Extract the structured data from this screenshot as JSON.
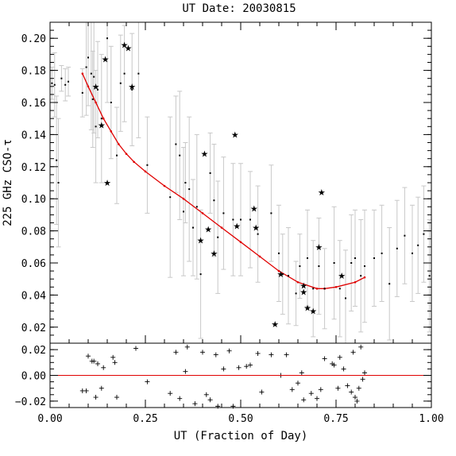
{
  "chart_data": {
    "type": "scatter",
    "title": "UT Date: 20030815",
    "xlabel": "UT (Fraction of Day)",
    "ylabel": "225 GHz CSO-τ",
    "xlim": [
      0,
      1
    ],
    "ylim": [
      0.01,
      0.21
    ],
    "resid_ylim": [
      -0.025,
      0.025
    ],
    "x_ticks": [
      "0.00",
      "0.25",
      "0.50",
      "0.75",
      "1.00"
    ],
    "y_ticks": [
      "0.02",
      "0.04",
      "0.06",
      "0.08",
      "0.10",
      "0.12",
      "0.14",
      "0.16",
      "0.18",
      "0.20"
    ],
    "resid_ticks": [
      "−0.02",
      "0.00",
      "0.02"
    ],
    "colors": {
      "fit": "#e00000",
      "errorbar": "#c8c8c8",
      "points": "#000000",
      "axes": "#000000"
    },
    "measurements": [
      {
        "x": 0.005,
        "y": 0.172,
        "err": 0.01
      },
      {
        "x": 0.012,
        "y": 0.171,
        "err": 0.02
      },
      {
        "x": 0.017,
        "y": 0.124,
        "err": 0.04
      },
      {
        "x": 0.022,
        "y": 0.11,
        "err": 0.04
      },
      {
        "x": 0.03,
        "y": 0.175,
        "err": 0.008
      },
      {
        "x": 0.04,
        "y": 0.171,
        "err": 0.01
      },
      {
        "x": 0.048,
        "y": 0.173,
        "err": 0.009
      },
      {
        "x": 0.085,
        "y": 0.166,
        "err": 0.015
      },
      {
        "x": 0.095,
        "y": 0.182,
        "err": 0.03
      },
      {
        "x": 0.1,
        "y": 0.188,
        "err": 0.03
      },
      {
        "x": 0.108,
        "y": 0.178,
        "err": 0.035
      },
      {
        "x": 0.112,
        "y": 0.162,
        "err": 0.03
      },
      {
        "x": 0.115,
        "y": 0.176,
        "err": 0.035
      },
      {
        "x": 0.12,
        "y": 0.145,
        "err": 0.035
      },
      {
        "x": 0.125,
        "y": 0.168,
        "err": 0.03
      },
      {
        "x": 0.135,
        "y": 0.15,
        "err": 0.04
      },
      {
        "x": 0.15,
        "y": 0.2,
        "err": 0.04
      },
      {
        "x": 0.16,
        "y": 0.16,
        "err": 0.035
      },
      {
        "x": 0.175,
        "y": 0.127,
        "err": 0.03
      },
      {
        "x": 0.185,
        "y": 0.172,
        "err": 0.03
      },
      {
        "x": 0.195,
        "y": 0.178,
        "err": 0.03
      },
      {
        "x": 0.215,
        "y": 0.168,
        "err": 0.035
      },
      {
        "x": 0.232,
        "y": 0.178,
        "err": 0.04
      },
      {
        "x": 0.255,
        "y": 0.121,
        "err": 0.03
      },
      {
        "x": 0.315,
        "y": 0.101,
        "err": 0.05
      },
      {
        "x": 0.33,
        "y": 0.134,
        "err": 0.03
      },
      {
        "x": 0.34,
        "y": 0.127,
        "err": 0.04
      },
      {
        "x": 0.35,
        "y": 0.092,
        "err": 0.04
      },
      {
        "x": 0.355,
        "y": 0.11,
        "err": 0.025
      },
      {
        "x": 0.365,
        "y": 0.106,
        "err": 0.045
      },
      {
        "x": 0.375,
        "y": 0.082,
        "err": 0.03
      },
      {
        "x": 0.385,
        "y": 0.095,
        "err": 0.045
      },
      {
        "x": 0.395,
        "y": 0.053,
        "err": 0.04
      },
      {
        "x": 0.42,
        "y": 0.116,
        "err": 0.025
      },
      {
        "x": 0.43,
        "y": 0.099,
        "err": 0.035
      },
      {
        "x": 0.44,
        "y": 0.076,
        "err": 0.035
      },
      {
        "x": 0.455,
        "y": 0.091,
        "err": 0.035
      },
      {
        "x": 0.48,
        "y": 0.087,
        "err": 0.035
      },
      {
        "x": 0.5,
        "y": 0.087,
        "err": 0.035
      },
      {
        "x": 0.525,
        "y": 0.087,
        "err": 0.03
      },
      {
        "x": 0.545,
        "y": 0.078,
        "err": 0.03
      },
      {
        "x": 0.58,
        "y": 0.091,
        "err": 0.03
      },
      {
        "x": 0.6,
        "y": 0.066,
        "err": 0.03
      },
      {
        "x": 0.61,
        "y": 0.053,
        "err": 0.025
      },
      {
        "x": 0.625,
        "y": 0.052,
        "err": 0.03
      },
      {
        "x": 0.645,
        "y": 0.041,
        "err": 0.02
      },
      {
        "x": 0.655,
        "y": 0.058,
        "err": 0.02
      },
      {
        "x": 0.675,
        "y": 0.063,
        "err": 0.03
      },
      {
        "x": 0.69,
        "y": 0.044,
        "err": 0.03
      },
      {
        "x": 0.705,
        "y": 0.058,
        "err": 0.03
      },
      {
        "x": 0.72,
        "y": 0.044,
        "err": 0.025
      },
      {
        "x": 0.745,
        "y": 0.06,
        "err": 0.035
      },
      {
        "x": 0.76,
        "y": 0.044,
        "err": 0.03
      },
      {
        "x": 0.775,
        "y": 0.038,
        "err": 0.03
      },
      {
        "x": 0.79,
        "y": 0.06,
        "err": 0.03
      },
      {
        "x": 0.8,
        "y": 0.063,
        "err": 0.03
      },
      {
        "x": 0.815,
        "y": 0.052,
        "err": 0.035
      },
      {
        "x": 0.825,
        "y": 0.058,
        "err": 0.035
      },
      {
        "x": 0.85,
        "y": 0.063,
        "err": 0.03
      },
      {
        "x": 0.87,
        "y": 0.066,
        "err": 0.03
      },
      {
        "x": 0.89,
        "y": 0.047,
        "err": 0.035
      },
      {
        "x": 0.91,
        "y": 0.069,
        "err": 0.03
      },
      {
        "x": 0.93,
        "y": 0.077,
        "err": 0.03
      },
      {
        "x": 0.95,
        "y": 0.066,
        "err": 0.03
      },
      {
        "x": 0.965,
        "y": 0.071,
        "err": 0.03
      },
      {
        "x": 0.98,
        "y": 0.078,
        "err": 0.03
      },
      {
        "x": 0.995,
        "y": 0.052,
        "err": 0.035
      }
    ],
    "stars": [
      {
        "x": 0.12,
        "y": 0.17
      },
      {
        "x": 0.135,
        "y": 0.146
      },
      {
        "x": 0.145,
        "y": 0.187
      },
      {
        "x": 0.15,
        "y": 0.11
      },
      {
        "x": 0.195,
        "y": 0.196
      },
      {
        "x": 0.205,
        "y": 0.194
      },
      {
        "x": 0.215,
        "y": 0.17
      },
      {
        "x": 0.395,
        "y": 0.074
      },
      {
        "x": 0.405,
        "y": 0.128
      },
      {
        "x": 0.415,
        "y": 0.081
      },
      {
        "x": 0.43,
        "y": 0.066
      },
      {
        "x": 0.485,
        "y": 0.14
      },
      {
        "x": 0.49,
        "y": 0.083
      },
      {
        "x": 0.535,
        "y": 0.094
      },
      {
        "x": 0.54,
        "y": 0.082
      },
      {
        "x": 0.59,
        "y": 0.022
      },
      {
        "x": 0.605,
        "y": 0.053
      },
      {
        "x": 0.665,
        "y": 0.046
      },
      {
        "x": 0.675,
        "y": 0.032
      },
      {
        "x": 0.69,
        "y": 0.03
      },
      {
        "x": 0.705,
        "y": 0.07
      },
      {
        "x": 0.712,
        "y": 0.104
      },
      {
        "x": 0.665,
        "y": 0.042
      },
      {
        "x": 0.765,
        "y": 0.052
      }
    ],
    "fit_curve": [
      {
        "x": 0.085,
        "y": 0.178
      },
      {
        "x": 0.1,
        "y": 0.17
      },
      {
        "x": 0.12,
        "y": 0.16
      },
      {
        "x": 0.14,
        "y": 0.15
      },
      {
        "x": 0.16,
        "y": 0.142
      },
      {
        "x": 0.18,
        "y": 0.134
      },
      {
        "x": 0.2,
        "y": 0.128
      },
      {
        "x": 0.22,
        "y": 0.123
      },
      {
        "x": 0.25,
        "y": 0.117
      },
      {
        "x": 0.3,
        "y": 0.108
      },
      {
        "x": 0.35,
        "y": 0.1
      },
      {
        "x": 0.4,
        "y": 0.091
      },
      {
        "x": 0.45,
        "y": 0.082
      },
      {
        "x": 0.5,
        "y": 0.073
      },
      {
        "x": 0.55,
        "y": 0.064
      },
      {
        "x": 0.6,
        "y": 0.055
      },
      {
        "x": 0.65,
        "y": 0.048
      },
      {
        "x": 0.7,
        "y": 0.044
      },
      {
        "x": 0.72,
        "y": 0.044
      },
      {
        "x": 0.75,
        "y": 0.045
      },
      {
        "x": 0.8,
        "y": 0.048
      },
      {
        "x": 0.825,
        "y": 0.051
      }
    ],
    "residuals": [
      {
        "x": 0.085,
        "y": -0.012
      },
      {
        "x": 0.095,
        "y": -0.012
      },
      {
        "x": 0.1,
        "y": 0.015
      },
      {
        "x": 0.11,
        "y": 0.011
      },
      {
        "x": 0.115,
        "y": 0.011
      },
      {
        "x": 0.12,
        "y": -0.017
      },
      {
        "x": 0.125,
        "y": 0.009
      },
      {
        "x": 0.135,
        "y": -0.01
      },
      {
        "x": 0.14,
        "y": 0.006
      },
      {
        "x": 0.165,
        "y": 0.014
      },
      {
        "x": 0.17,
        "y": 0.01
      },
      {
        "x": 0.175,
        "y": -0.017
      },
      {
        "x": 0.225,
        "y": 0.021
      },
      {
        "x": 0.255,
        "y": -0.005
      },
      {
        "x": 0.315,
        "y": -0.014
      },
      {
        "x": 0.33,
        "y": 0.018
      },
      {
        "x": 0.34,
        "y": -0.018
      },
      {
        "x": 0.355,
        "y": 0.003
      },
      {
        "x": 0.36,
        "y": 0.022
      },
      {
        "x": 0.38,
        "y": -0.022
      },
      {
        "x": 0.4,
        "y": 0.018
      },
      {
        "x": 0.41,
        "y": -0.015
      },
      {
        "x": 0.42,
        "y": -0.019
      },
      {
        "x": 0.435,
        "y": 0.016
      },
      {
        "x": 0.44,
        "y": -0.024
      },
      {
        "x": 0.455,
        "y": 0.005
      },
      {
        "x": 0.47,
        "y": 0.019
      },
      {
        "x": 0.48,
        "y": -0.024
      },
      {
        "x": 0.495,
        "y": 0.006
      },
      {
        "x": 0.515,
        "y": 0.007
      },
      {
        "x": 0.525,
        "y": 0.008
      },
      {
        "x": 0.545,
        "y": 0.017
      },
      {
        "x": 0.555,
        "y": -0.013
      },
      {
        "x": 0.58,
        "y": 0.016
      },
      {
        "x": 0.605,
        "y": 0.0
      },
      {
        "x": 0.62,
        "y": 0.016
      },
      {
        "x": 0.635,
        "y": -0.011
      },
      {
        "x": 0.65,
        "y": -0.006
      },
      {
        "x": 0.66,
        "y": 0.002
      },
      {
        "x": 0.665,
        "y": -0.019
      },
      {
        "x": 0.685,
        "y": -0.014
      },
      {
        "x": 0.7,
        "y": -0.018
      },
      {
        "x": 0.71,
        "y": -0.011
      },
      {
        "x": 0.72,
        "y": 0.013
      },
      {
        "x": 0.74,
        "y": 0.009
      },
      {
        "x": 0.745,
        "y": 0.008
      },
      {
        "x": 0.755,
        "y": -0.01
      },
      {
        "x": 0.76,
        "y": 0.014
      },
      {
        "x": 0.77,
        "y": 0.005
      },
      {
        "x": 0.78,
        "y": -0.008
      },
      {
        "x": 0.79,
        "y": -0.013
      },
      {
        "x": 0.795,
        "y": 0.018
      },
      {
        "x": 0.8,
        "y": -0.017
      },
      {
        "x": 0.805,
        "y": -0.02
      },
      {
        "x": 0.81,
        "y": -0.01
      },
      {
        "x": 0.815,
        "y": 0.022
      },
      {
        "x": 0.82,
        "y": -0.003
      },
      {
        "x": 0.825,
        "y": 0.002
      }
    ]
  }
}
